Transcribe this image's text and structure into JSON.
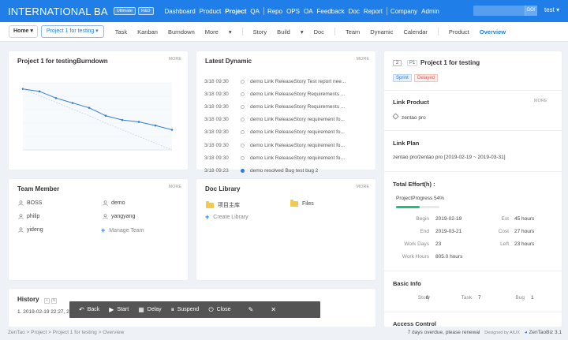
{
  "topnav": {
    "brand": "INTERNATIONAL BA",
    "badges": [
      "Ultimate",
      "R&D"
    ],
    "menu": [
      "Dashboard",
      "Product",
      "Project",
      "QA",
      "Repo",
      "OPS",
      "OA",
      "Feedback",
      "Doc",
      "Report",
      "Company",
      "Admin"
    ],
    "active": "Project",
    "go_label": "GO!",
    "user": "test"
  },
  "subnav": {
    "home": "Home",
    "project": "Project 1 for testing",
    "items": [
      "Task",
      "Kanban",
      "Burndown",
      "More",
      "Story",
      "Build",
      "Doc",
      "Team",
      "Dynamic",
      "Calendar",
      "Product",
      "Overview"
    ],
    "active": "Overview"
  },
  "burndown": {
    "title": "Project 1 for testingBurndown",
    "more": "MORE"
  },
  "chart_data": {
    "type": "line",
    "title": "",
    "series": [
      {
        "values": [
          100,
          96,
          85,
          77,
          69,
          56,
          49,
          46,
          40,
          33
        ]
      },
      {
        "values": [
          100,
          89,
          78,
          67,
          56,
          44,
          33,
          22,
          11,
          0
        ]
      }
    ],
    "ylim": [
      0,
      110
    ]
  },
  "dynamic": {
    "title": "Latest Dynamic",
    "more": "MORE",
    "rows": [
      {
        "time": "3/18 09:30",
        "text": "demo Link ReleaseStory Test report nee..."
      },
      {
        "time": "3/18 09:30",
        "text": "demo Link ReleaseStory Requirements ..."
      },
      {
        "time": "3/18 09:30",
        "text": "demo Link ReleaseStory Requirements ..."
      },
      {
        "time": "3/18 09:30",
        "text": "demo Link ReleaseStory requirement fo..."
      },
      {
        "time": "3/18 09:30",
        "text": "demo Link ReleaseStory requirement fo..."
      },
      {
        "time": "3/18 09:30",
        "text": "demo Link ReleaseStory requirement fo..."
      },
      {
        "time": "3/18 09:30",
        "text": "demo Link ReleaseStory requirement fo..."
      },
      {
        "time": "3/18 09:23",
        "text": "demo resolved Bug test bug 2"
      }
    ]
  },
  "team": {
    "title": "Team Member",
    "more": "MORE",
    "members": [
      "BOSS",
      "demo",
      "philip",
      "yangyang",
      "yideng"
    ],
    "manage": "Manage Team"
  },
  "doclib": {
    "title": "Doc Library",
    "more": "MORE",
    "folders": [
      "项目主库",
      "Files"
    ],
    "create": "Create Library"
  },
  "history": {
    "title": "History",
    "entry": "1. 2019-02-19 22:27, 2..."
  },
  "project": {
    "id": "2",
    "pri": "P1",
    "name": "Project 1 for testing",
    "tags": [
      "Sprint",
      "Delayed"
    ],
    "link_product_label": "Link Product",
    "link_product_more": "MORE",
    "product": "zentao pro",
    "link_plan_label": "Link Plan",
    "plan": "zentao pro/zentao pro [2019-02-19 ~ 2019-03-31]",
    "effort_label": "Total Effort(h) :",
    "progress_label": "ProjectProgress 54%",
    "progress": 54,
    "begin_k": "Begin",
    "begin_v": "2019-02-19",
    "est_k": "Est",
    "est_v": "45 hours",
    "end_k": "End",
    "end_v": "2019-03-21",
    "cost_k": "Cost",
    "cost_v": "27 hours",
    "workdays_k": "Work Days",
    "workdays_v": "23",
    "left_k": "Left",
    "left_v": "23 hours",
    "workhours_k": "Work Hours",
    "workhours_v": "805.0 hours",
    "basic_label": "Basic Info",
    "story_k": "Story",
    "story_v": "8",
    "task_k": "Task",
    "task_v": "7",
    "bug_k": "Bug",
    "bug_v": "1",
    "access_label": "Access Control"
  },
  "toolbar": {
    "back": "Back",
    "start": "Start",
    "delay": "Delay",
    "suspend": "Suspend",
    "close": "Close"
  },
  "footer": {
    "breadcrumb": [
      "ZenTao",
      "Project",
      "Project 1 for testing",
      "Overview"
    ],
    "notice": "7 days overdue, please renewal",
    "designed": "Designed by AIUX",
    "version": "ZenTaoBiz 3.1"
  }
}
